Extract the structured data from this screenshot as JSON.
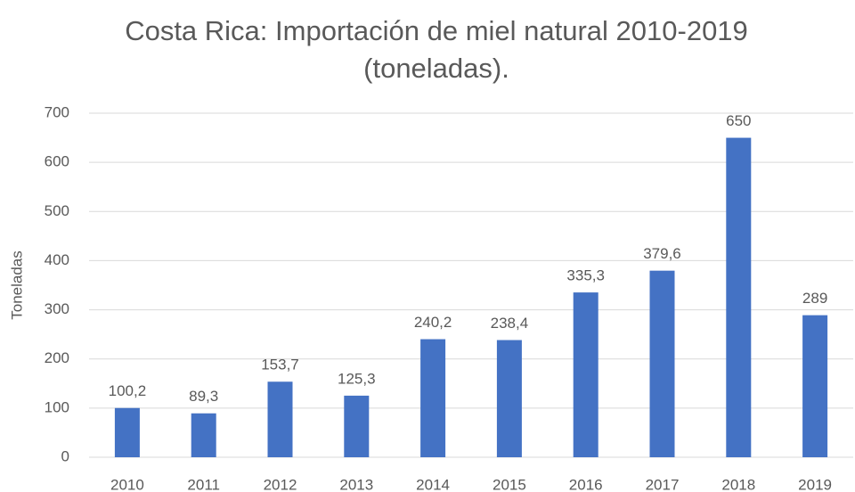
{
  "chart_data": {
    "type": "bar",
    "title": "Costa Rica: Importación de miel natural 2010-2019 (toneladas).",
    "y_label": "Toneladas",
    "categories": [
      "2010",
      "2011",
      "2012",
      "2013",
      "2014",
      "2015",
      "2016",
      "2017",
      "2018",
      "2019"
    ],
    "values": [
      100.2,
      89.3,
      153.7,
      125.3,
      240.2,
      238.4,
      335.3,
      379.6,
      650,
      289
    ],
    "value_labels": [
      "100,2",
      "89,3",
      "153,7",
      "125,3",
      "240,2",
      "238,4",
      "335,3",
      "379,6",
      "650",
      "289"
    ],
    "color": "#4472c4",
    "ylim": [
      0,
      700
    ],
    "yticks": [
      0,
      100,
      200,
      300,
      400,
      500,
      600,
      700
    ],
    "grid": true
  }
}
